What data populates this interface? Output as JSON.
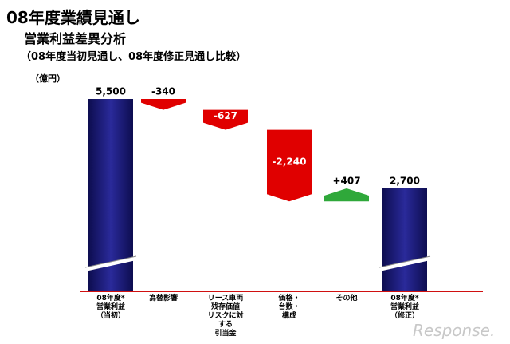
{
  "chart_data": {
    "type": "waterfall",
    "title": "08年度業績見通し",
    "subtitle": "営業利益差異分析",
    "note": "（08年度当初見通し、08年度修正見通し比較）",
    "unit_label": "（億円）",
    "watermark": "Response.",
    "categories": [
      "08年度*\n営業利益\n（当初）",
      "為替影響",
      "リース車両\n残存価値\nリスクに対\nする\n引当金",
      "価格・\n台数・\n構成",
      "その他",
      "08年度*\n営業利益\n（修正）"
    ],
    "measure": [
      "total",
      "relative",
      "relative",
      "relative",
      "relative",
      "total"
    ],
    "values": [
      5500,
      -340,
      -627,
      -2240,
      407,
      2700
    ],
    "value_labels": [
      "5,500",
      "-340",
      "-627",
      "-2,240",
      "+407",
      "2,700"
    ],
    "total_color": "#1c1c78",
    "decrease_color": "#e00000",
    "increase_color": "#2fa83a",
    "ylim": [
      0,
      6000
    ],
    "axis_break": true
  }
}
